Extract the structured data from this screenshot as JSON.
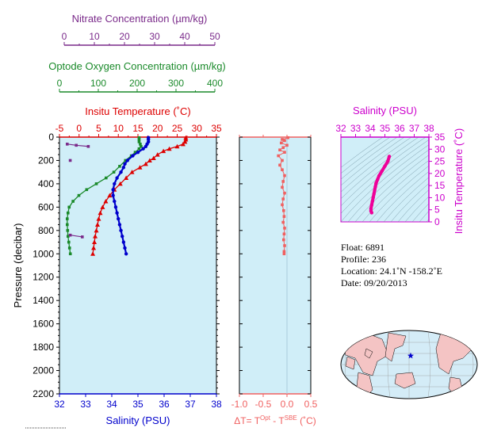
{
  "colors": {
    "nitrate": "#7a2a8a",
    "oxygen": "#1a8a2a",
    "temperature": "#dd0000",
    "salinity": "#0000cc",
    "delta": "#f06060",
    "ts_axis": "#cc00cc",
    "ts_curve": "#ee0099",
    "panel_bg": "#d0eef8"
  },
  "chart_data": [
    {
      "type": "line",
      "name": "main-profile",
      "y_axis": {
        "label": "Pressure (decibar)",
        "range": [
          0,
          2200
        ],
        "inverted": true,
        "ticks": [
          0,
          200,
          400,
          600,
          800,
          1000,
          1200,
          1400,
          1600,
          1800,
          2000,
          2200
        ]
      },
      "x_axes": {
        "nitrate": {
          "label": "Nitrate Concentration (µm/kg)",
          "range": [
            0,
            50
          ],
          "ticks": [
            "0",
            "10",
            "20",
            "30",
            "40",
            "50"
          ]
        },
        "oxygen": {
          "label": "Optode Oxygen Concentration (µm/kg)",
          "range": [
            0,
            400
          ],
          "ticks": [
            "0",
            "100",
            "200",
            "300",
            "400"
          ]
        },
        "temperature": {
          "label": "Insitu Temperature (˚C)",
          "range": [
            -5,
            35
          ],
          "ticks": [
            "-5",
            "0",
            "5",
            "10",
            "15",
            "20",
            "25",
            "30",
            "35"
          ]
        },
        "salinity": {
          "label": "Salinity (PSU)",
          "range": [
            32,
            38
          ],
          "ticks": [
            "32",
            "33",
            "34",
            "35",
            "36",
            "37",
            "38"
          ]
        }
      },
      "series": {
        "temperature": {
          "p": [
            5,
            20,
            40,
            60,
            80,
            100,
            120,
            150,
            180,
            200,
            230,
            260,
            300,
            350,
            400,
            450,
            500,
            550,
            600,
            650,
            700,
            750,
            800,
            850,
            900,
            950,
            1000
          ],
          "v": [
            27.2,
            27.2,
            27.0,
            26.5,
            25.0,
            23.0,
            21.5,
            20.0,
            19.0,
            18.0,
            17.0,
            15.5,
            13.5,
            12.0,
            10.5,
            9.0,
            7.8,
            6.8,
            6.0,
            5.4,
            5.0,
            4.7,
            4.4,
            4.1,
            3.9,
            3.7,
            3.5
          ]
        },
        "salinity": {
          "p": [
            5,
            20,
            40,
            60,
            80,
            100,
            130,
            160,
            200,
            230,
            260,
            300,
            350,
            400,
            450,
            500,
            550,
            600,
            650,
            700,
            750,
            800,
            850,
            900,
            950,
            1000
          ],
          "v": [
            35.4,
            35.4,
            35.4,
            35.35,
            35.3,
            35.2,
            35.0,
            34.8,
            34.6,
            34.5,
            34.45,
            34.35,
            34.2,
            34.1,
            34.05,
            34.05,
            34.1,
            34.15,
            34.2,
            34.25,
            34.3,
            34.35,
            34.4,
            34.45,
            34.5,
            34.55
          ]
        },
        "oxygen": {
          "p": [
            5,
            20,
            40,
            60,
            80,
            100,
            130,
            160,
            200,
            250,
            300,
            350,
            400,
            450,
            500,
            550,
            600,
            650,
            700,
            750,
            800,
            850,
            900,
            950,
            1000
          ],
          "v": [
            205,
            205,
            205,
            208,
            210,
            205,
            195,
            185,
            170,
            155,
            140,
            120,
            95,
            70,
            50,
            35,
            25,
            22,
            20,
            20,
            21,
            22,
            24,
            26,
            28
          ]
        },
        "nitrate": {
          "p": [
            60,
            70,
            80,
            200,
            840,
            855
          ],
          "v": [
            1.0,
            4.0,
            8.0,
            2.0,
            2.0,
            6.0
          ]
        }
      }
    },
    {
      "type": "line",
      "name": "delta-temperature",
      "xlabel": "ΔT= T",
      "xlabel_sup1": "Opt",
      "xlabel_mid": " - T",
      "xlabel_sup2": "SBE",
      "xlabel_end": " (˚C)",
      "x_range": [
        -1.0,
        0.5
      ],
      "x_ticks": [
        "-1.0",
        "-0.5",
        "0.0",
        "0.5"
      ],
      "y_range": [
        0,
        2200
      ],
      "p": [
        5,
        20,
        30,
        50,
        70,
        90,
        110,
        130,
        160,
        200,
        240,
        280,
        330,
        380,
        430,
        480,
        530,
        580,
        630,
        680,
        730,
        780,
        830,
        880,
        930,
        980,
        1000
      ],
      "v": [
        0.02,
        -0.1,
        -0.05,
        -0.12,
        0.0,
        -0.08,
        -0.15,
        -0.05,
        -0.18,
        -0.1,
        -0.15,
        -0.1,
        -0.05,
        -0.08,
        -0.1,
        -0.05,
        -0.08,
        -0.1,
        -0.07,
        -0.06,
        -0.08,
        -0.05,
        -0.06,
        -0.07,
        -0.05,
        -0.06,
        -0.06
      ]
    },
    {
      "type": "line",
      "name": "ts-diagram",
      "xlabel": "Salinity (PSU)",
      "ylabel": "Insitu Temperature (˚C)",
      "x_range": [
        32,
        38
      ],
      "y_range": [
        0,
        35
      ],
      "x_ticks": [
        "32",
        "33",
        "34",
        "35",
        "36",
        "37",
        "38"
      ],
      "y_ticks": [
        "0",
        "5",
        "10",
        "15",
        "20",
        "25",
        "30",
        "35"
      ],
      "s": [
        35.3,
        35.2,
        35.0,
        34.8,
        34.6,
        34.5,
        34.4,
        34.35,
        34.3,
        34.25,
        34.2,
        34.15,
        34.1,
        34.05,
        34.05,
        34.1
      ],
      "t": [
        27.0,
        25.0,
        23.0,
        21.0,
        19.0,
        17.5,
        16.0,
        14.5,
        13.0,
        11.5,
        10.0,
        8.5,
        7.0,
        5.5,
        4.5,
        3.8
      ]
    }
  ],
  "float_info": {
    "float": "Float:  6891",
    "profile": "Profile:  236",
    "location": "Location:  24.1˚N  -158.2˚E",
    "date": "Date:  09/20/2013"
  }
}
